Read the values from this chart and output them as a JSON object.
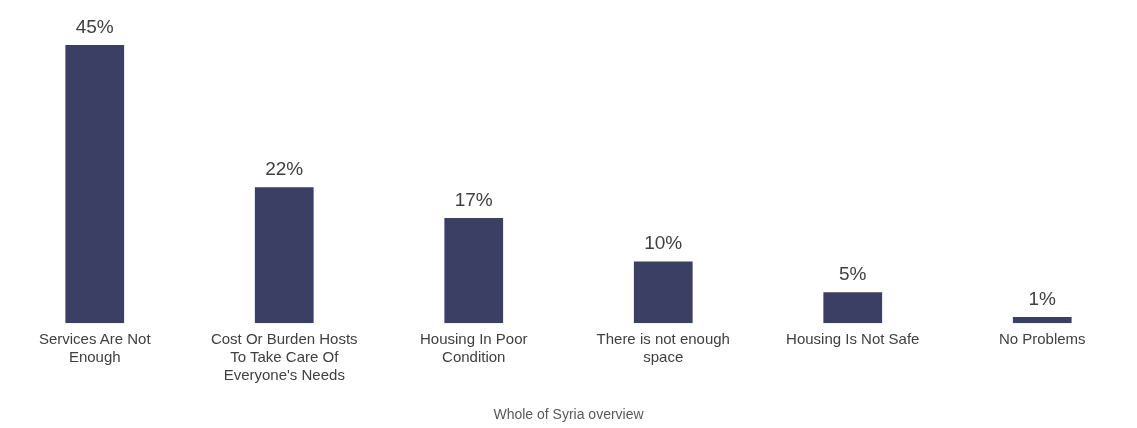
{
  "chart_data": {
    "type": "bar",
    "xlabel": "Whole of Syria overview",
    "categories": [
      "Services Are Not Enough",
      "Cost Or Burden Hosts To Take Care Of Everyone's Needs",
      "Housing In Poor Condition",
      "There is not enough space",
      "Housing Is Not Safe",
      "No Problems"
    ],
    "values": [
      45,
      22,
      17,
      10,
      5,
      1
    ],
    "color": "#3b3f63",
    "tick_labels": "x",
    "value_labels": [
      "45%",
      "22%",
      "17%",
      "10%",
      "5%",
      "1%"
    ],
    "grid": false,
    "legend": false
  }
}
